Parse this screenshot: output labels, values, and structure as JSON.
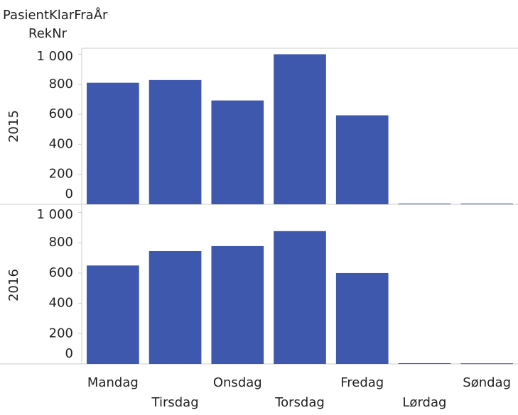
{
  "header": {
    "title": "PasientKlarFraÅr",
    "axis_label": "RekNr"
  },
  "chart_data": [
    {
      "type": "bar",
      "panel": "2015",
      "categories": [
        "Mandag",
        "Tirsdag",
        "Onsdag",
        "Torsdag",
        "Fredag",
        "Lørdag",
        "Søndag"
      ],
      "values": [
        810,
        828,
        692,
        1000,
        593,
        5,
        5
      ],
      "color": "#3e58ad",
      "ylim": [
        0,
        1040
      ],
      "yticks": [
        0,
        200,
        400,
        600,
        800,
        {
          "value": 1000,
          "label": "1 000"
        }
      ]
    },
    {
      "type": "bar",
      "panel": "2016",
      "categories": [
        "Mandag",
        "Tirsdag",
        "Onsdag",
        "Torsdag",
        "Fredag",
        "Lørdag",
        "Søndag"
      ],
      "values": [
        650,
        745,
        778,
        877,
        600,
        5,
        4
      ],
      "color": "#3e58ad",
      "ylim": [
        0,
        1040
      ],
      "yticks": [
        0,
        200,
        400,
        600,
        800,
        {
          "value": 1000,
          "label": "1 000"
        }
      ]
    }
  ]
}
